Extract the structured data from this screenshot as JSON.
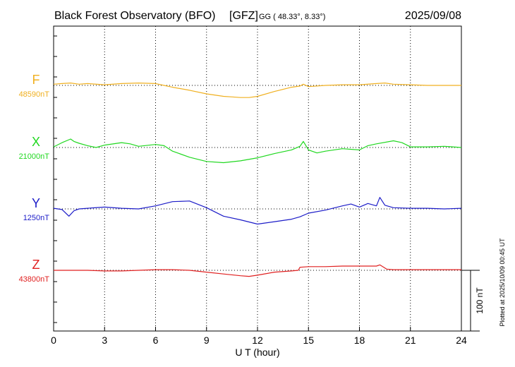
{
  "header": {
    "observatory": "Black Forest Observatory (BFO)",
    "agency": "[GFZ]",
    "coords": "GG ( 48.33°,  8.33°)",
    "date": "2025/09/08"
  },
  "plotted_note": "Plotted at 2025/10/09 00:45 UT",
  "scale_bar_label": "100 nT",
  "chart_data": {
    "type": "line",
    "title": "Black Forest Observatory (BFO)",
    "xlabel": "U T (hour)",
    "ylabel": "",
    "xlim": [
      0,
      24
    ],
    "xticks": [
      0,
      3,
      6,
      9,
      12,
      15,
      18,
      21,
      24
    ],
    "xtick_labels": [
      "0",
      "3",
      "6",
      "9",
      "12",
      "15",
      "18",
      "21",
      "24"
    ],
    "scale_nT": 100,
    "grid": true,
    "series": [
      {
        "name": "F",
        "baseline_label": "48590nT",
        "baseline_nT": 48590,
        "color": "#f0b020",
        "x": [
          0,
          0.5,
          1,
          1.5,
          2,
          3,
          4,
          5,
          6,
          6.5,
          7,
          8,
          9,
          10,
          10.5,
          11,
          11.5,
          12,
          13,
          14,
          14.5,
          14.7,
          15,
          16,
          17,
          18,
          19,
          19.5,
          20,
          21,
          22,
          23,
          24
        ],
        "y": [
          48592,
          48593,
          48594,
          48592,
          48593,
          48591,
          48593,
          48594,
          48593,
          48590,
          48587,
          48582,
          48576,
          48572,
          48571,
          48570,
          48570,
          48572,
          48580,
          48587,
          48589,
          48592,
          48588,
          48590,
          48591,
          48591,
          48593,
          48594,
          48592,
          48591,
          48590,
          48590,
          48590
        ]
      },
      {
        "name": "X",
        "baseline_label": "21000nT",
        "baseline_nT": 21000,
        "color": "#20d820",
        "x": [
          0,
          0.5,
          1,
          1.2,
          1.5,
          2,
          2.5,
          3,
          4,
          4.5,
          5,
          6,
          6.5,
          7,
          8,
          9,
          10,
          11,
          12,
          13,
          14,
          14.5,
          14.7,
          15,
          15.5,
          16,
          17,
          18,
          18.5,
          19,
          20,
          20.5,
          21,
          22,
          23,
          24
        ],
        "y": [
          21001,
          21008,
          21014,
          21010,
          21007,
          21003,
          21000,
          21004,
          21008,
          21006,
          21002,
          21005,
          21003,
          20994,
          20984,
          20977,
          20975,
          20978,
          20983,
          20990,
          20996,
          21002,
          21010,
          20996,
          20991,
          20994,
          20998,
          20996,
          21003,
          21006,
          21011,
          21008,
          21001,
          21001,
          21002,
          21000
        ]
      },
      {
        "name": "Y",
        "baseline_label": "1250nT",
        "baseline_nT": 1250,
        "color": "#1c1cc8",
        "x": [
          0,
          0.5,
          0.9,
          1.2,
          1.5,
          2,
          3,
          4,
          5,
          6,
          7,
          8,
          9,
          10,
          11,
          12,
          13,
          14,
          14.5,
          15,
          16,
          17,
          17.5,
          18,
          18.5,
          19,
          19.2,
          19.5,
          20,
          21,
          22,
          23,
          24
        ],
        "y": [
          1251,
          1249,
          1238,
          1247,
          1250,
          1251,
          1253,
          1251,
          1250,
          1255,
          1262,
          1263,
          1252,
          1238,
          1232,
          1225,
          1229,
          1233,
          1237,
          1243,
          1248,
          1255,
          1258,
          1253,
          1259,
          1255,
          1269,
          1256,
          1252,
          1251,
          1251,
          1250,
          1251
        ]
      },
      {
        "name": "Z",
        "baseline_label": "43800nT",
        "baseline_nT": 43800,
        "color": "#e02020",
        "x": [
          0,
          1,
          2,
          3,
          4,
          5,
          6,
          7,
          8,
          9,
          10,
          11,
          11.5,
          12,
          13,
          14,
          14.4,
          14.5,
          15,
          16,
          17,
          18,
          19,
          19.2,
          19.6,
          20,
          21,
          22,
          23,
          24
        ],
        "y": [
          43800,
          43800,
          43800,
          43799,
          43799,
          43800,
          43801,
          43801,
          43800,
          43797,
          43794,
          43791,
          43790,
          43792,
          43797,
          43799,
          43800,
          43805,
          43806,
          43806,
          43807,
          43807,
          43807,
          43809,
          43802,
          43801,
          43801,
          43801,
          43801,
          43801
        ]
      }
    ]
  }
}
